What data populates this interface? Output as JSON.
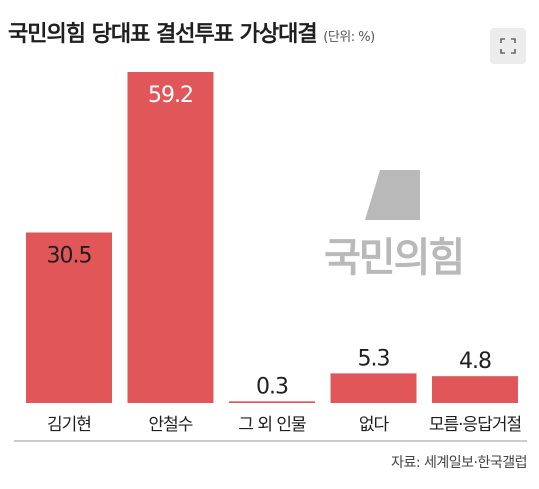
{
  "header": {
    "title": "국민의힘 당대표 결선투표 가상대결",
    "unit": "(단위: %)"
  },
  "icons": {
    "expand": "expand-icon"
  },
  "logo": {
    "text": "국민의힘",
    "color": "#b9b9b9"
  },
  "source": "자료: 세계일보·한국갤럽",
  "colors": {
    "bar": "#e15759",
    "axis": "#9a9a9a"
  },
  "chart_data": {
    "type": "bar",
    "title": "국민의힘 당대표 결선투표 가상대결",
    "unit": "(단위: %)",
    "categories": [
      "김기현",
      "안철수",
      "그 외 인물",
      "없다",
      "모름·응답거절"
    ],
    "values": [
      30.5,
      59.2,
      0.3,
      5.3,
      4.8
    ],
    "value_labels": [
      "30.5",
      "59.2",
      "0.3",
      "5.3",
      "4.8"
    ],
    "ylim": [
      0,
      59.2
    ],
    "grid": false,
    "legend": "none"
  }
}
